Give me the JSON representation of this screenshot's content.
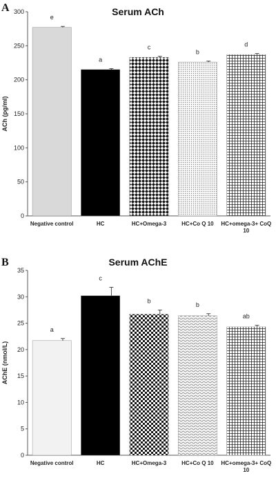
{
  "chart_data": [
    {
      "panel": "A",
      "type": "bar",
      "title": "Serum ACh",
      "ylabel": "ACh (pg/ml)",
      "xlabel": "",
      "ylim": [
        0,
        300
      ],
      "yticks": [
        0,
        50,
        100,
        150,
        200,
        250,
        300
      ],
      "categories": [
        "Negative control",
        "HC",
        "HC+Omega-3",
        "HC+Co Q 10",
        "HC+omega-3+ CoQ 10"
      ],
      "values": [
        277,
        215,
        233,
        226,
        237
      ],
      "errors": [
        1.5,
        1.5,
        1.5,
        1.5,
        1.5
      ],
      "significance": [
        "e",
        "a",
        "c",
        "b",
        "d"
      ],
      "fills": [
        "lightgray",
        "black",
        "diamond",
        "dots",
        "grid"
      ],
      "grid": false
    },
    {
      "panel": "B",
      "type": "bar",
      "title": "Serum AChE",
      "ylabel": "AChE (nmol/L)",
      "xlabel": "",
      "ylim": [
        0,
        35
      ],
      "yticks": [
        0,
        5,
        10,
        15,
        20,
        25,
        30,
        35
      ],
      "categories": [
        "Negative control",
        "HC",
        "HC+Omega-3",
        "HC+Co Q 10",
        "HC+omega-3+ CoQ 10"
      ],
      "values": [
        21.7,
        30.2,
        26.7,
        26.4,
        24.3
      ],
      "errors": [
        0.4,
        1.6,
        0.8,
        0.4,
        0.3
      ],
      "significance": [
        "a",
        "c",
        "b",
        "b",
        "ab"
      ],
      "fills": [
        "light",
        "black",
        "checker",
        "wave",
        "grid"
      ],
      "grid": false
    }
  ]
}
